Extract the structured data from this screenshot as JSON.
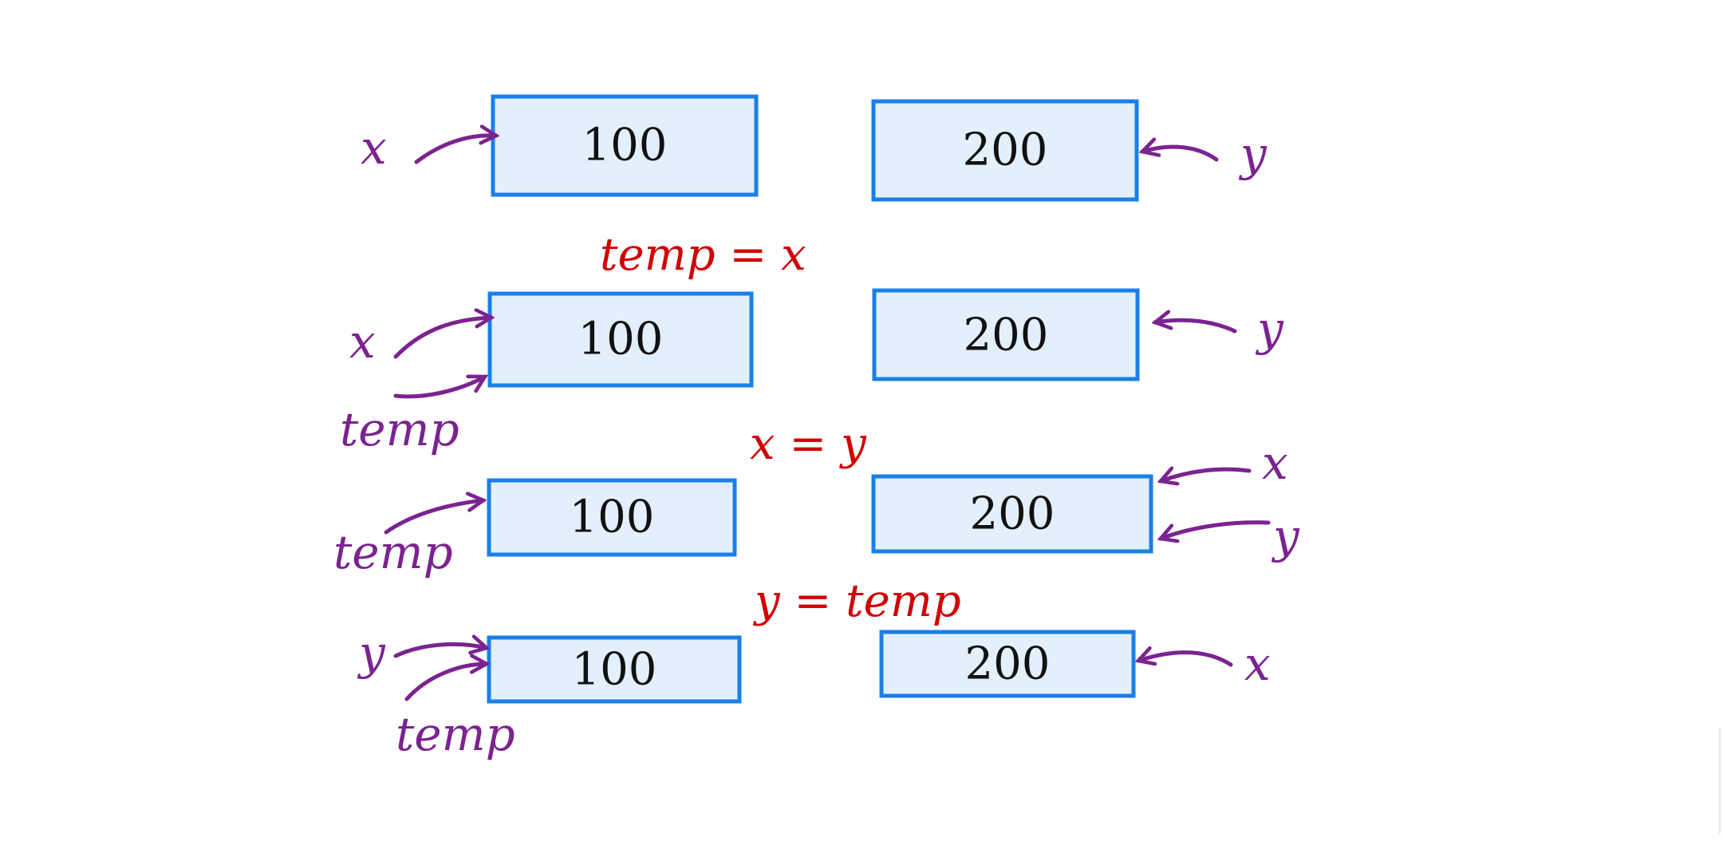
{
  "colors": {
    "box_fill": "#e3effb",
    "box_stroke": "#1a7fe8",
    "variable_label": "#7b2390",
    "step_label": "#d10000",
    "value_text": "#111111"
  },
  "rows": [
    {
      "left": {
        "value": "100",
        "labels": [
          "x"
        ]
      },
      "right": {
        "value": "200",
        "labels": [
          "y"
        ]
      }
    },
    {
      "step": "temp = x",
      "left": {
        "value": "100",
        "labels": [
          "x",
          "temp"
        ]
      },
      "right": {
        "value": "200",
        "labels": [
          "y"
        ]
      }
    },
    {
      "step": "x = y",
      "left": {
        "value": "100",
        "labels": [
          "temp"
        ]
      },
      "right": {
        "value": "200",
        "labels": [
          "x",
          "y"
        ]
      }
    },
    {
      "step": "y = temp",
      "left": {
        "value": "100",
        "labels": [
          "y",
          "temp"
        ]
      },
      "right": {
        "value": "200",
        "labels": [
          "x"
        ]
      }
    }
  ]
}
